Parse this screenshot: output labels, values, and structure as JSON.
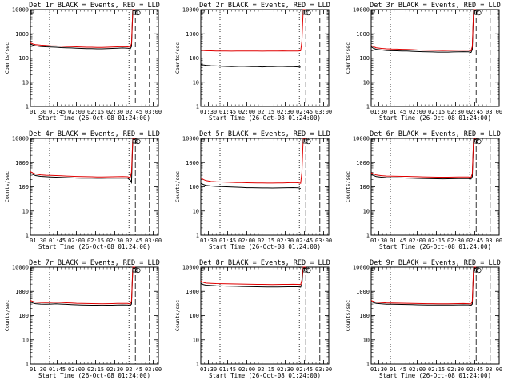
{
  "chart_data": {
    "type": "line",
    "layout": "3x3 grid of panels",
    "x_ticks": [
      "01:30",
      "01:45",
      "02:00",
      "02:15",
      "02:30",
      "02:45",
      "03:00"
    ],
    "x_range_minutes_after_0124": [
      0,
      100
    ],
    "x_tick_minutes_after_0124": [
      6,
      21,
      36,
      51,
      66,
      81,
      96
    ],
    "xlabel": "Start Time (26-Oct-08 01:24:00)",
    "ylabel": "Counts/sec",
    "y_ticks": [
      "1",
      "10",
      "100",
      "1000",
      "10000"
    ],
    "y_scale": "log",
    "ylim": [
      1,
      10000
    ],
    "vertical_markers_minutes": {
      "dotted": [
        15,
        77
      ],
      "dashed": [
        82,
        93
      ]
    },
    "legend": {
      "black": "Events",
      "red": "LLD"
    },
    "panels": [
      {
        "title": "Det 1r BLACK = Events, RED = LLD",
        "x": [
          0,
          2,
          4,
          8,
          12,
          16,
          20,
          24,
          28,
          32,
          36,
          40,
          44,
          48,
          52,
          56,
          60,
          64,
          68,
          72,
          76,
          78,
          79,
          80,
          82
        ],
        "series": [
          {
            "name": "Events",
            "color": "#000000",
            "values": [
              380,
              340,
              320,
              300,
              290,
              285,
              280,
              270,
              265,
              260,
              255,
              250,
              245,
              245,
              240,
              240,
              245,
              250,
              255,
              260,
              255,
              240,
              300,
              9000,
              9000
            ]
          },
          {
            "name": "LLD",
            "color": "#e00000",
            "values": [
              420,
              380,
              360,
              340,
              330,
              320,
              315,
              305,
              300,
              295,
              290,
              285,
              280,
              280,
              275,
              275,
              280,
              285,
              290,
              295,
              290,
              280,
              400,
              10000,
              10000
            ]
          }
        ]
      },
      {
        "title": "Det 2r BLACK = Events, RED = LLD",
        "x": [
          0,
          2,
          4,
          8,
          12,
          16,
          20,
          24,
          28,
          32,
          36,
          40,
          44,
          48,
          52,
          56,
          60,
          64,
          68,
          72,
          76,
          78,
          79,
          80,
          82
        ],
        "series": [
          {
            "name": "Events",
            "color": "#000000",
            "values": [
              55,
              52,
              50,
              48,
              47,
              46,
              45,
              44,
              45,
              46,
              45,
              44,
              44,
              43,
              44,
              44,
              45,
              45,
              44,
              44,
              43,
              42,
              null,
              null,
              null
            ]
          },
          {
            "name": "LLD",
            "color": "#e00000",
            "values": [
              210,
              205,
              200,
              198,
              196,
              195,
              194,
              193,
              195,
              196,
              195,
              194,
              194,
              193,
              194,
              195,
              196,
              197,
              196,
              195,
              194,
              200,
              500,
              10000,
              10000
            ]
          }
        ]
      },
      {
        "title": "Det 3r BLACK = Events, RED = LLD",
        "x": [
          0,
          2,
          4,
          8,
          12,
          16,
          20,
          24,
          28,
          32,
          36,
          40,
          44,
          48,
          52,
          56,
          60,
          64,
          68,
          72,
          76,
          78,
          79,
          80,
          82
        ],
        "series": [
          {
            "name": "Events",
            "color": "#000000",
            "values": [
              290,
              250,
              230,
              215,
              205,
              200,
              198,
              196,
              195,
              190,
              185,
              182,
              180,
              178,
              176,
              175,
              176,
              178,
              180,
              182,
              180,
              170,
              220,
              9000,
              9000
            ]
          },
          {
            "name": "LLD",
            "color": "#e00000",
            "values": [
              330,
              290,
              265,
              250,
              240,
              235,
              232,
              230,
              228,
              222,
              216,
              212,
              210,
              208,
              206,
              205,
              206,
              208,
              210,
              212,
              210,
              200,
              300,
              10000,
              10000
            ]
          }
        ]
      },
      {
        "title": "Det 4r BLACK = Events, RED = LLD",
        "x": [
          0,
          2,
          4,
          8,
          12,
          16,
          20,
          24,
          28,
          32,
          36,
          40,
          44,
          48,
          52,
          56,
          60,
          64,
          68,
          72,
          76,
          78,
          79,
          80,
          82
        ],
        "series": [
          {
            "name": "Events",
            "color": "#000000",
            "values": [
              360,
              320,
              290,
              270,
              260,
              255,
              250,
              245,
              240,
              235,
              230,
              228,
              226,
              225,
              224,
              224,
              225,
              226,
              228,
              230,
              226,
              190,
              150,
              9000,
              9000
            ]
          },
          {
            "name": "LLD",
            "color": "#e00000",
            "values": [
              420,
              370,
              335,
              310,
              300,
              295,
              290,
              284,
              278,
              272,
              266,
              262,
              260,
              258,
              256,
              256,
              257,
              258,
              260,
              262,
              258,
              240,
              400,
              10000,
              10000
            ]
          }
        ]
      },
      {
        "title": "Det 5r BLACK = Events, RED = LLD",
        "x": [
          0,
          2,
          4,
          8,
          12,
          16,
          20,
          24,
          28,
          32,
          36,
          40,
          44,
          48,
          52,
          56,
          60,
          64,
          68,
          72,
          76,
          78,
          79,
          80,
          82
        ],
        "series": [
          {
            "name": "Events",
            "color": "#000000",
            "values": [
              140,
              125,
              115,
              108,
              104,
              102,
              100,
              98,
              96,
              94,
              92,
              92,
              91,
              90,
              90,
              89,
              90,
              91,
              92,
              93,
              91,
              85,
              null,
              null,
              null
            ]
          },
          {
            "name": "LLD",
            "color": "#e00000",
            "values": [
              230,
              200,
              180,
              165,
              160,
              158,
              155,
              152,
              150,
              148,
              146,
              145,
              144,
              143,
              142,
              142,
              143,
              144,
              146,
              148,
              146,
              140,
              400,
              10000,
              10000
            ]
          }
        ]
      },
      {
        "title": "Det 6r BLACK = Events, RED = LLD",
        "x": [
          0,
          2,
          4,
          8,
          12,
          16,
          20,
          24,
          28,
          32,
          36,
          40,
          44,
          48,
          52,
          56,
          60,
          64,
          68,
          72,
          76,
          78,
          79,
          80,
          82
        ],
        "series": [
          {
            "name": "Events",
            "color": "#000000",
            "values": [
              330,
              290,
              265,
              250,
              240,
              236,
              234,
              232,
              230,
              226,
              222,
              220,
              218,
              216,
              214,
              213,
              214,
              216,
              218,
              220,
              217,
              210,
              260,
              9000,
              9000
            ]
          },
          {
            "name": "LLD",
            "color": "#e00000",
            "values": [
              380,
              335,
              305,
              288,
              278,
              274,
              272,
              270,
              268,
              264,
              260,
              257,
              254,
              252,
              250,
              249,
              250,
              252,
              254,
              256,
              253,
              245,
              350,
              10000,
              10000
            ]
          }
        ]
      },
      {
        "title": "Det 7r BLACK = Events, RED = LLD",
        "x": [
          0,
          2,
          4,
          8,
          12,
          16,
          20,
          24,
          28,
          32,
          36,
          40,
          44,
          48,
          52,
          56,
          60,
          64,
          68,
          72,
          76,
          78,
          79,
          80,
          82
        ],
        "series": [
          {
            "name": "Events",
            "color": "#000000",
            "values": [
              360,
              330,
              310,
              300,
              295,
              300,
              305,
              300,
              292,
              285,
              280,
              276,
              272,
              270,
              268,
              266,
              268,
              270,
              274,
              278,
              275,
              260,
              300,
              9000,
              9000
            ]
          },
          {
            "name": "LLD",
            "color": "#e00000",
            "values": [
              420,
              385,
              360,
              348,
              342,
              348,
              354,
              348,
              338,
              330,
              324,
              320,
              316,
              313,
              310,
              308,
              310,
              313,
              317,
              321,
              318,
              300,
              400,
              10000,
              10000
            ]
          }
        ]
      },
      {
        "title": "Det 8r BLACK = Events, RED = LLD",
        "x": [
          0,
          2,
          4,
          8,
          12,
          16,
          20,
          24,
          28,
          32,
          36,
          40,
          44,
          48,
          52,
          56,
          60,
          64,
          68,
          72,
          76,
          78,
          79,
          80,
          82
        ],
        "series": [
          {
            "name": "Events",
            "color": "#000000",
            "values": [
              2200,
              1900,
              1800,
              1750,
              1700,
              1680,
              1660,
              1640,
              1620,
              1600,
              1580,
              1560,
              1550,
              1540,
              1530,
              1520,
              1530,
              1540,
              1550,
              1560,
              1550,
              1500,
              2000,
              9000,
              9000
            ]
          },
          {
            "name": "LLD",
            "color": "#e00000",
            "values": [
              2700,
              2350,
              2200,
              2150,
              2100,
              2080,
              2060,
              2040,
              2020,
              2000,
              1980,
              1960,
              1950,
              1940,
              1930,
              1920,
              1930,
              1940,
              1950,
              1960,
              1950,
              1900,
              3000,
              10000,
              10000
            ]
          }
        ]
      },
      {
        "title": "Det 9r BLACK = Events, RED = LLD",
        "x": [
          0,
          2,
          4,
          8,
          12,
          16,
          20,
          24,
          28,
          32,
          36,
          40,
          44,
          48,
          52,
          56,
          60,
          64,
          68,
          72,
          76,
          78,
          79,
          80,
          82
        ],
        "series": [
          {
            "name": "Events",
            "color": "#000000",
            "values": [
              380,
              340,
              320,
              305,
              298,
              295,
              292,
              290,
              288,
              284,
              280,
              278,
              276,
              275,
              274,
              273,
              274,
              276,
              278,
              280,
              277,
              265,
              300,
              9000,
              9000
            ]
          },
          {
            "name": "LLD",
            "color": "#e00000",
            "values": [
              420,
              380,
              358,
              342,
              335,
              332,
              329,
              326,
              324,
              320,
              316,
              313,
              311,
              310,
              309,
              308,
              309,
              311,
              313,
              315,
              312,
              300,
              400,
              10000,
              10000
            ]
          }
        ]
      }
    ]
  }
}
